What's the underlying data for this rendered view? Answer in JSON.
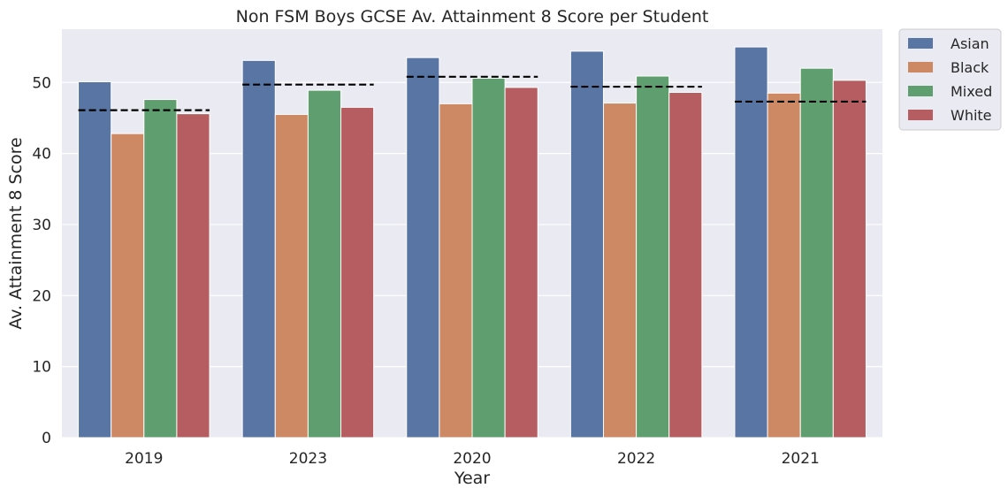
{
  "chart_data": {
    "type": "bar",
    "title": "Non FSM Boys GCSE Av. Attainment 8 Score per Student",
    "xlabel": "Year",
    "ylabel": "Av. Attainment 8 Score",
    "categories": [
      "2019",
      "2023",
      "2020",
      "2022",
      "2021"
    ],
    "series": [
      {
        "name": "Asian",
        "color": "#5875a4",
        "values": [
          50.1,
          53.1,
          53.5,
          54.4,
          55.0
        ]
      },
      {
        "name": "Black",
        "color": "#cc8963",
        "values": [
          42.8,
          45.5,
          47.0,
          47.1,
          48.5
        ]
      },
      {
        "name": "Mixed",
        "color": "#5f9e6e",
        "values": [
          47.6,
          48.9,
          50.6,
          50.9,
          52.0
        ]
      },
      {
        "name": "White",
        "color": "#b55d60",
        "values": [
          45.6,
          46.5,
          49.3,
          48.6,
          50.3
        ]
      }
    ],
    "reference_lines": {
      "style": "dashed",
      "color": "#000000",
      "values": [
        46.1,
        49.7,
        50.8,
        49.4,
        47.3
      ]
    },
    "ylim": [
      0,
      57.5
    ],
    "yticks": [
      0,
      10,
      20,
      30,
      40,
      50
    ],
    "grid": true,
    "background": "#eaeaf2",
    "legend_position": "outside-top-right"
  }
}
